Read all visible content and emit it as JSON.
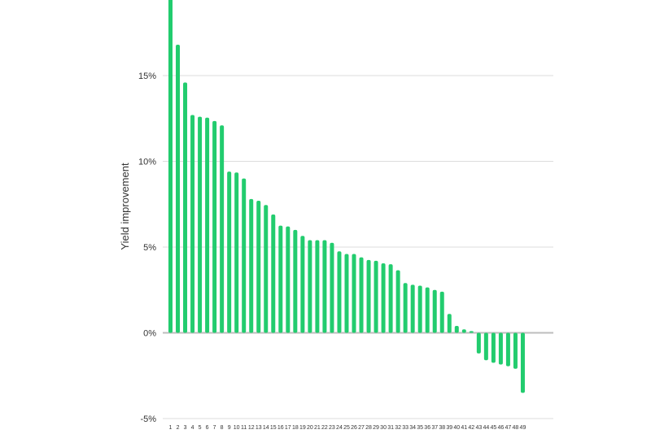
{
  "chart_data": {
    "type": "bar",
    "title": "",
    "xlabel": "",
    "ylabel": "Yield improvement",
    "ylim": [
      -5,
      20
    ],
    "yticks": [
      -5,
      0,
      5,
      10,
      15
    ],
    "ytick_labels": [
      "-5%",
      "0%",
      "5%",
      "10%",
      "15%"
    ],
    "grid": true,
    "bar_color": "#22cc6e",
    "categories": [
      "1",
      "2",
      "3",
      "4",
      "5",
      "6",
      "7",
      "8",
      "9",
      "10",
      "11",
      "12",
      "13",
      "14",
      "15",
      "16",
      "17",
      "18",
      "19",
      "20",
      "21",
      "22",
      "23",
      "24",
      "25",
      "26",
      "27",
      "28",
      "29",
      "30",
      "31",
      "32",
      "33",
      "34",
      "35",
      "36",
      "37",
      "38",
      "39",
      "40",
      "41",
      "42",
      "43",
      "44",
      "45",
      "46",
      "47",
      "48",
      "49"
    ],
    "values": [
      19.8,
      16.8,
      14.6,
      12.7,
      12.6,
      12.55,
      12.35,
      12.1,
      9.4,
      9.35,
      9.0,
      7.8,
      7.7,
      7.45,
      6.9,
      6.25,
      6.2,
      6.0,
      5.65,
      5.4,
      5.4,
      5.4,
      5.25,
      4.75,
      4.6,
      4.6,
      4.4,
      4.25,
      4.2,
      4.05,
      4.0,
      3.65,
      2.9,
      2.8,
      2.75,
      2.65,
      2.5,
      2.4,
      1.1,
      0.4,
      0.2,
      0.1,
      -1.2,
      -1.6,
      -1.75,
      -1.85,
      -1.95,
      -2.1,
      -3.5
    ]
  }
}
